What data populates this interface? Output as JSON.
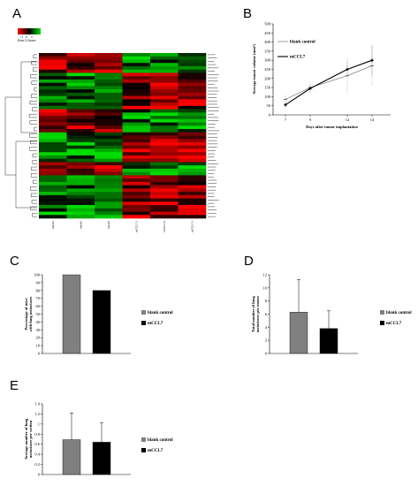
{
  "panel_letters": {
    "a": "A",
    "b": "B",
    "c": "C",
    "d": "D",
    "e": "E"
  },
  "colors": {
    "control_bar": "#808080",
    "treated_bar": "#000000",
    "heat_low": "#00dd00",
    "heat_mid": "#000000",
    "heat_high": "#ff0000"
  },
  "chart_data": [
    {
      "panel": "A",
      "type": "heatmap",
      "color_key": {
        "ticks": [
          "-1",
          "0",
          "1"
        ],
        "label": "Row Z-Score"
      },
      "columns": [
        "blank1",
        "blank2",
        "blank3",
        "mCCL7-1",
        "mCCL7-2",
        "mCCL7-3"
      ],
      "rows_count": 50,
      "values": [],
      "row_labels": []
    },
    {
      "panel": "B",
      "type": "line",
      "x": [
        7,
        9,
        12,
        14
      ],
      "xlabel": "Days after tumor implantation",
      "ylabel": "Average tumor volume (mm³)",
      "ylim": [
        0,
        500
      ],
      "yticks": [
        0,
        50,
        100,
        150,
        200,
        250,
        300,
        350,
        400,
        450,
        500
      ],
      "series": [
        {
          "name": "blank control",
          "values": [
            85,
            150,
            215,
            270
          ],
          "errors": [
            25,
            35,
            95,
            110
          ]
        },
        {
          "name": "mCCL7",
          "values": [
            55,
            145,
            250,
            300
          ],
          "errors": [
            15,
            20,
            40,
            85
          ]
        }
      ]
    },
    {
      "panel": "C",
      "type": "bar",
      "categories": [
        "blank control",
        "mCCL7"
      ],
      "values": [
        100,
        80
      ],
      "errors": [
        0,
        0
      ],
      "ylabel": "Percentage of mice with lung metastases",
      "ylim": [
        0,
        100
      ],
      "yticks": [
        0,
        10,
        20,
        30,
        40,
        50,
        60,
        70,
        80,
        90,
        100
      ],
      "legend": [
        "blank control",
        "mCCL7"
      ]
    },
    {
      "panel": "D",
      "type": "bar",
      "categories": [
        "blank control",
        "mCCL7"
      ],
      "values": [
        6.3,
        3.8
      ],
      "errors": [
        5,
        2.7
      ],
      "ylabel": "Total number of lung metastases per mouse",
      "ylim": [
        0,
        12
      ],
      "yticks": [
        0,
        2,
        4,
        6,
        8,
        10,
        12
      ],
      "legend": [
        "blank control",
        "mCCL7"
      ]
    },
    {
      "panel": "E",
      "type": "bar",
      "categories": [
        "blank control",
        "mCCL7"
      ],
      "values": [
        0.69,
        0.64
      ],
      "errors": [
        0.53,
        0.38
      ],
      "ylabel": "Average number of lung metastases per section",
      "ylim": [
        0,
        1.4
      ],
      "yticks": [
        0,
        0.2,
        0.4,
        0.6,
        0.8,
        1,
        1.2,
        1.4
      ],
      "legend": [
        "blank control",
        "mCCL7"
      ]
    }
  ]
}
